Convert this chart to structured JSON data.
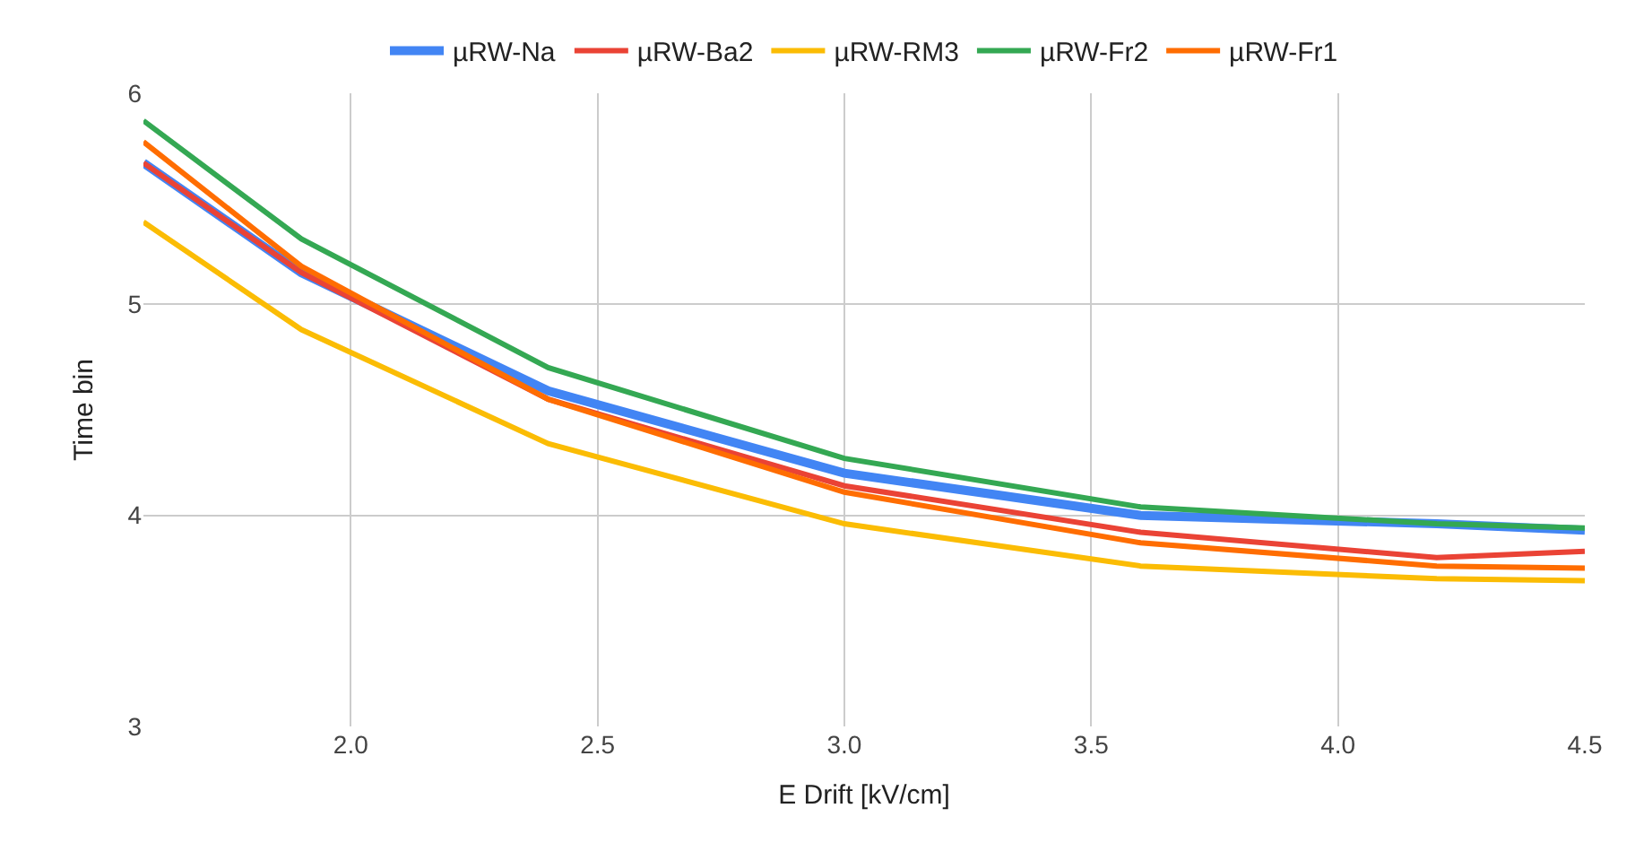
{
  "chart_data": {
    "type": "line",
    "xlabel": "E Drift [kV/cm]",
    "ylabel": "Time bin",
    "x": [
      1.58,
      1.9,
      2.4,
      3.0,
      3.6,
      4.2,
      4.5
    ],
    "series": [
      {
        "name": "µRW-Na",
        "color": "#4285f4",
        "values": [
          5.67,
          5.15,
          4.59,
          4.2,
          4.0,
          3.96,
          3.93
        ]
      },
      {
        "name": "µRW-Ba2",
        "color": "#ea4335",
        "values": [
          5.67,
          5.15,
          4.55,
          4.14,
          3.92,
          3.8,
          3.83
        ]
      },
      {
        "name": "µRW-RM3",
        "color": "#fbbc04",
        "values": [
          5.39,
          4.88,
          4.34,
          3.96,
          3.76,
          3.7,
          3.69
        ]
      },
      {
        "name": "µRW-Fr2",
        "color": "#34a853",
        "values": [
          5.87,
          5.31,
          4.7,
          4.27,
          4.04,
          3.96,
          3.94
        ]
      },
      {
        "name": "µRW-Fr1",
        "color": "#ff6d01",
        "values": [
          5.77,
          5.18,
          4.55,
          4.11,
          3.87,
          3.76,
          3.75
        ]
      }
    ],
    "xlim": [
      1.58,
      4.5
    ],
    "xticks": [
      {
        "value": 2,
        "label": "2.0"
      },
      {
        "value": 2.5,
        "label": "2.5"
      },
      {
        "value": 3,
        "label": "3.0"
      },
      {
        "value": 3.5,
        "label": "3.5"
      },
      {
        "value": 4,
        "label": "4.0"
      },
      {
        "value": 4.5,
        "label": "4.5"
      }
    ],
    "ylim": [
      3,
      6
    ],
    "yticks": [
      3,
      4,
      5,
      6
    ],
    "grid": true,
    "legend": "top",
    "marker": "none",
    "line_style": "solid"
  }
}
